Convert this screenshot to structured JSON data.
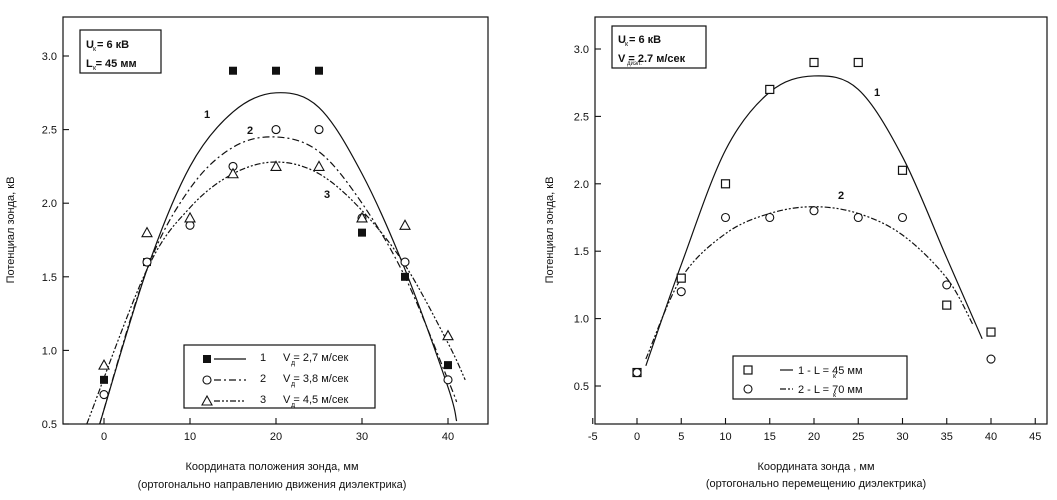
{
  "chart_data": [
    {
      "type": "scatter",
      "xlim": [
        -5,
        43
      ],
      "ylim": [
        0.5,
        3.25
      ],
      "x_ticks": [
        "0",
        "10",
        "20",
        "30",
        "40"
      ],
      "y_ticks": [
        "0.5",
        "1.0",
        "1.5",
        "2.0",
        "2.5",
        "3.0"
      ],
      "xlabel": "Координата положения зонда, мм",
      "xlabel2": "(ортогонально направлению движения диэлектрика)",
      "ylabel": "Потенциал зонда, кВ",
      "params": [
        "U = 6 кВ",
        "L = 45 мм"
      ],
      "params_sub": [
        "к",
        "к"
      ],
      "grid": false,
      "legend_position": "bottom-right",
      "series": [
        {
          "label": "1",
          "legend_text": "V = 2,7 м/сек",
          "legend_sub": "д",
          "marker": "filled-square",
          "line": "solid",
          "x": [
            0,
            5,
            15,
            20,
            25,
            30,
            35,
            40
          ],
          "y": [
            0.8,
            1.6,
            2.9,
            2.9,
            2.9,
            1.8,
            1.5,
            0.9
          ],
          "fit": {
            "x": [
              -0.5,
              5,
              10,
              15,
              20,
              25,
              30,
              35,
              40,
              41
            ],
            "y": [
              0.5,
              1.55,
              2.25,
              2.62,
              2.75,
              2.65,
              2.2,
              1.55,
              0.75,
              0.52
            ]
          }
        },
        {
          "label": "2",
          "legend_text": "V = 3,8 м/сек",
          "legend_sub": "д",
          "marker": "open-circle",
          "line": "dash-dot",
          "x": [
            0,
            5,
            10,
            15,
            20,
            25,
            30,
            35,
            40
          ],
          "y": [
            0.7,
            1.6,
            1.85,
            2.25,
            2.5,
            2.5,
            1.9,
            1.6,
            0.8
          ],
          "fit": {
            "x": [
              -0.5,
              5,
              10,
              15,
              20,
              25,
              30,
              35,
              40,
              41
            ],
            "y": [
              0.5,
              1.55,
              2.1,
              2.38,
              2.45,
              2.35,
              2.0,
              1.5,
              0.8,
              0.65
            ]
          }
        },
        {
          "label": "3",
          "legend_text": "V = 4,5 м/сек",
          "legend_sub": "д",
          "marker": "open-triangle",
          "line": "dash-dot-dot",
          "x": [
            0,
            5,
            10,
            15,
            20,
            25,
            30,
            35,
            40
          ],
          "y": [
            0.9,
            1.8,
            1.9,
            2.2,
            2.25,
            2.25,
            1.9,
            1.85,
            1.1
          ],
          "fit": {
            "x": [
              -2,
              5,
              10,
              15,
              20,
              25,
              30,
              35,
              40,
              42
            ],
            "y": [
              0.5,
              1.55,
              1.97,
              2.2,
              2.28,
              2.2,
              1.95,
              1.58,
              1.05,
              0.8
            ]
          }
        }
      ],
      "annotations": [
        "1",
        "2",
        "3"
      ]
    },
    {
      "type": "scatter",
      "xlim": [
        -5,
        45
      ],
      "ylim": [
        0.35,
        3.25
      ],
      "x_ticks": [
        "-5",
        "0",
        "5",
        "10",
        "15",
        "20",
        "25",
        "30",
        "35",
        "40",
        "45"
      ],
      "y_ticks": [
        "0.5",
        "1.0",
        "1.5",
        "2.0",
        "2.5",
        "3.0"
      ],
      "xlabel": "Координата зонда , мм",
      "xlabel2": "(ортогонально перемещению диэлектрика)",
      "ylabel": "Потенциал зонда, кВ",
      "params": [
        "U = 6 кВ",
        "V = 2.7 м/сек"
      ],
      "params_sub": [
        "к",
        "диэл."
      ],
      "grid": false,
      "legend_position": "bottom-right",
      "series": [
        {
          "label": "1",
          "legend_text": "1 -  L = 45 мм",
          "legend_sub": "к",
          "marker": "open-square",
          "line": "solid",
          "x": [
            0,
            5,
            10,
            15,
            20,
            25,
            30,
            35,
            40
          ],
          "y": [
            0.6,
            1.3,
            2.0,
            2.7,
            2.9,
            2.9,
            2.1,
            1.1,
            0.9
          ],
          "fit": {
            "x": [
              1,
              5,
              10,
              15,
              20,
              25,
              30,
              35,
              39
            ],
            "y": [
              0.65,
              1.4,
              2.25,
              2.68,
              2.8,
              2.7,
              2.2,
              1.45,
              0.85
            ]
          }
        },
        {
          "label": "2",
          "legend_text": "2 -  L = 70 мм",
          "legend_sub": "к",
          "marker": "open-circle",
          "line": "dash-dot-dot",
          "x": [
            0,
            5,
            10,
            15,
            20,
            25,
            30,
            35,
            40
          ],
          "y": [
            0.6,
            1.2,
            1.75,
            1.75,
            1.8,
            1.75,
            1.75,
            1.25,
            0.7
          ],
          "fit": {
            "x": [
              1,
              5,
              10,
              15,
              20,
              25,
              30,
              35,
              38
            ],
            "y": [
              0.7,
              1.3,
              1.63,
              1.78,
              1.83,
              1.78,
              1.62,
              1.3,
              0.95
            ]
          }
        }
      ],
      "annotations": [
        "1",
        "2"
      ]
    }
  ]
}
